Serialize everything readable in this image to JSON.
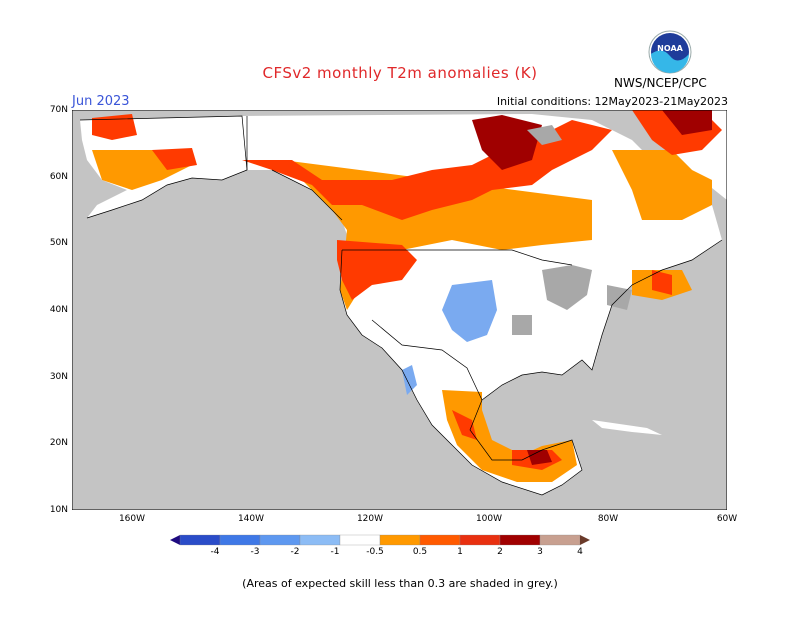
{
  "header": {
    "title": "CFSv2 monthly T2m anomalies (K)",
    "month": "Jun 2023",
    "initial_conditions": "Initial conditions: 12May2023-21May2023",
    "agency": "NWS/NCEP/CPC",
    "logo_text": "NOAA"
  },
  "axes": {
    "lat_labels": [
      "70N",
      "60N",
      "50N",
      "40N",
      "30N",
      "20N",
      "10N"
    ],
    "lon_labels": [
      "160W",
      "140W",
      "120W",
      "100W",
      "80W",
      "60W"
    ]
  },
  "colorbar": {
    "labels": [
      "-4",
      "-3",
      "-2",
      "-1",
      "-0.5",
      "0.5",
      "1",
      "2",
      "3",
      "4"
    ],
    "colors": [
      "#1e0a80",
      "#2a4cc8",
      "#3f78e6",
      "#5e98f0",
      "#8cbcf5",
      "#ffffff",
      "#ff9900",
      "#ff5a00",
      "#e83010",
      "#a00000",
      "#c8a090",
      "#6a3a2a"
    ]
  },
  "legend_colors": {
    "land_grey": "#c4c4c4",
    "ocean": "#c4c4c4",
    "neutral": "#ffffff",
    "orange": "#ff9900",
    "red_orange": "#ff5a00",
    "red": "#e83010",
    "dark_red": "#a00000",
    "skill_grey": "#a8a8a8",
    "blue": "#7aaaf0"
  },
  "footnote": "(Areas of expected skill less than 0.3 are shaded in grey.)"
}
